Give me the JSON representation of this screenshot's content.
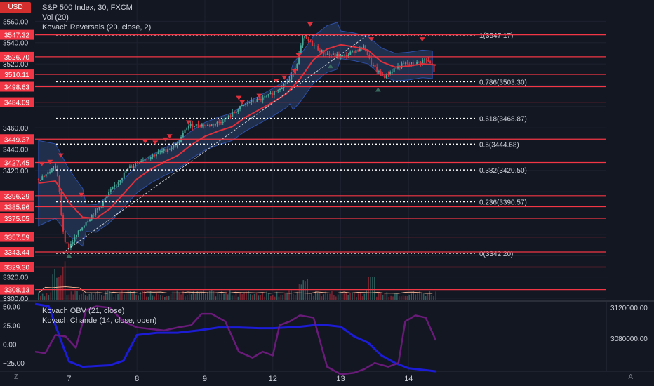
{
  "header": {
    "currency": "USD",
    "symbol_line": "S&P 500 Index, 30, FXCM",
    "vol_line": "Vol (20)",
    "kovach_line": "Kovach Reversals (20, close, 2)",
    "sub_line1": "Kovach OBV (21, close)",
    "sub_line2": "Kovach Chande (14, close, open)"
  },
  "corner": {
    "left": "Z",
    "right": "A"
  },
  "colors": {
    "background": "#131722",
    "level_line": "#f23645",
    "level_label_bg": "#f23645",
    "fib_line": "#ffffff",
    "ema": "#e0303c",
    "band_fill": "#2a4470",
    "obv": "#1c1cd6",
    "chande": "#6a1b7a",
    "candle_up": "#4aa89a",
    "candle_down": "#e0303c"
  },
  "chart_data": [
    {
      "type": "candlestick",
      "title": "S&P 500 Index, 30, FXCM",
      "ylim": [
        3298,
        3580
      ],
      "yticks": [
        3300,
        3320,
        3340,
        3360,
        3380,
        3400,
        3420,
        3440,
        3460,
        3480,
        3500,
        3520,
        3540,
        3560
      ],
      "xlim": [
        6.5,
        14.9
      ],
      "xticks": [
        "7",
        "8",
        "9",
        "12",
        "13",
        "14"
      ],
      "xtick_positions": [
        7,
        8,
        9,
        10,
        11,
        12
      ],
      "horizontal_levels": [
        3547.32,
        3526.7,
        3510.11,
        3498.63,
        3484.09,
        3449.37,
        3427.45,
        3396.29,
        3385.96,
        3375.05,
        3357.59,
        3343.44,
        3329.3,
        3308.13
      ],
      "fibonacci": [
        {
          "label": "1(3547.17)",
          "value": 3547.17
        },
        {
          "label": "0.786(3503.30)",
          "value": 3503.3
        },
        {
          "label": "0.618(3468.87)",
          "value": 3468.87
        },
        {
          "label": "0.5(3444.68)",
          "value": 3444.68
        },
        {
          "label": "0.382(3420.50)",
          "value": 3420.5
        },
        {
          "label": "0.236(3390.57)",
          "value": 3390.57
        },
        {
          "label": "0(3342.20)",
          "value": 3342.2
        }
      ],
      "price_path": [
        [
          6.55,
          3412
        ],
        [
          6.7,
          3418
        ],
        [
          6.8,
          3425
        ],
        [
          6.85,
          3405
        ],
        [
          6.9,
          3368
        ],
        [
          6.95,
          3352
        ],
        [
          7.0,
          3348
        ],
        [
          7.1,
          3358
        ],
        [
          7.25,
          3372
        ],
        [
          7.4,
          3382
        ],
        [
          7.55,
          3395
        ],
        [
          7.7,
          3408
        ],
        [
          7.85,
          3420
        ],
        [
          8.0,
          3428
        ],
        [
          8.15,
          3432
        ],
        [
          8.3,
          3436
        ],
        [
          8.45,
          3440
        ],
        [
          8.6,
          3445
        ],
        [
          8.75,
          3462
        ],
        [
          8.9,
          3463
        ],
        [
          9.05,
          3462
        ],
        [
          9.2,
          3465
        ],
        [
          9.35,
          3470
        ],
        [
          9.5,
          3478
        ],
        [
          9.65,
          3484
        ],
        [
          9.8,
          3486
        ],
        [
          9.95,
          3490
        ],
        [
          10.1,
          3498
        ],
        [
          10.25,
          3505
        ],
        [
          10.35,
          3520
        ],
        [
          10.45,
          3545
        ],
        [
          10.55,
          3540
        ],
        [
          10.65,
          3535
        ],
        [
          10.75,
          3530
        ],
        [
          10.9,
          3528
        ],
        [
          11.05,
          3527
        ],
        [
          11.2,
          3532
        ],
        [
          11.35,
          3536
        ],
        [
          11.45,
          3520
        ],
        [
          11.55,
          3512
        ],
        [
          11.65,
          3508
        ],
        [
          11.8,
          3516
        ],
        [
          11.95,
          3520
        ],
        [
          12.1,
          3520
        ],
        [
          12.25,
          3524
        ],
        [
          12.35,
          3518
        ],
        [
          12.4,
          3508
        ]
      ],
      "ema_path": [
        [
          6.55,
          3408
        ],
        [
          6.8,
          3410
        ],
        [
          7.0,
          3390
        ],
        [
          7.2,
          3376
        ],
        [
          7.4,
          3375
        ],
        [
          7.6,
          3384
        ],
        [
          7.8,
          3398
        ],
        [
          8.0,
          3412
        ],
        [
          8.2,
          3421
        ],
        [
          8.4,
          3428
        ],
        [
          8.6,
          3434
        ],
        [
          8.8,
          3444
        ],
        [
          9.0,
          3452
        ],
        [
          9.2,
          3457
        ],
        [
          9.4,
          3461
        ],
        [
          9.6,
          3470
        ],
        [
          9.8,
          3477
        ],
        [
          10.0,
          3484
        ],
        [
          10.2,
          3492
        ],
        [
          10.4,
          3506
        ],
        [
          10.6,
          3524
        ],
        [
          10.8,
          3534
        ],
        [
          11.0,
          3538
        ],
        [
          11.2,
          3536
        ],
        [
          11.4,
          3533
        ],
        [
          11.6,
          3522
        ],
        [
          11.8,
          3517
        ],
        [
          12.0,
          3518
        ],
        [
          12.2,
          3520
        ],
        [
          12.4,
          3519
        ]
      ],
      "trendline": [
        [
          6.9,
          3342.2
        ],
        [
          11.4,
          3547.17
        ]
      ],
      "reversal_down_markers": [
        [
          6.6,
          3426
        ],
        [
          6.72,
          3428
        ],
        [
          6.88,
          3434
        ],
        [
          7.18,
          3397
        ],
        [
          8.12,
          3447
        ],
        [
          8.27,
          3446
        ],
        [
          8.42,
          3449
        ],
        [
          8.48,
          3452
        ],
        [
          8.76,
          3465
        ],
        [
          9.5,
          3488
        ],
        [
          9.55,
          3484
        ],
        [
          9.8,
          3490
        ],
        [
          10.05,
          3504
        ],
        [
          10.17,
          3507
        ],
        [
          10.32,
          3513
        ],
        [
          10.38,
          3528
        ],
        [
          10.55,
          3557
        ],
        [
          11.45,
          3543
        ],
        [
          12.2,
          3543
        ]
      ],
      "reversal_up_markers": [
        [
          7.0,
          3340
        ],
        [
          10.85,
          3518
        ],
        [
          11.55,
          3496
        ]
      ]
    },
    {
      "type": "line",
      "ylim": [
        -35,
        55
      ],
      "yticks": [
        -25,
        0,
        25,
        50
      ],
      "ytick_labels": [
        "−25.00",
        "0.00",
        "25.00",
        "50.00"
      ],
      "right_ytick_labels": [
        "3120000.00",
        "3080000.00"
      ],
      "series": [
        {
          "name": "Kovach OBV (21, close)",
          "x": [
            6.5,
            6.7,
            6.9,
            7.0,
            7.2,
            7.4,
            7.6,
            7.8,
            8.0,
            8.3,
            8.6,
            8.9,
            9.2,
            9.5,
            9.8,
            10.0,
            10.2,
            10.4,
            10.6,
            10.8,
            11.0,
            11.2,
            11.4,
            11.6,
            11.8,
            12.0,
            12.2,
            12.4
          ],
          "values": [
            53,
            50,
            0,
            -23,
            -30,
            -29,
            -28,
            -22,
            12,
            15,
            15,
            18,
            22,
            22,
            21,
            21,
            22,
            23,
            25,
            25,
            23,
            10,
            2,
            -15,
            -25,
            -32,
            -34,
            -36
          ]
        },
        {
          "name": "Kovach Chande (14, close, open)",
          "x": [
            6.5,
            6.65,
            6.8,
            6.95,
            7.1,
            7.25,
            7.4,
            7.6,
            7.8,
            8.0,
            8.2,
            8.4,
            8.6,
            8.8,
            8.95,
            9.1,
            9.3,
            9.5,
            9.7,
            9.85,
            10.0,
            10.1,
            10.25,
            10.4,
            10.6,
            10.8,
            11.0,
            11.2,
            11.35,
            11.5,
            11.7,
            11.85,
            11.95,
            12.1,
            12.25,
            12.4
          ],
          "values": [
            -10,
            -12,
            12,
            10,
            -5,
            45,
            50,
            48,
            30,
            22,
            20,
            18,
            22,
            25,
            40,
            40,
            30,
            -10,
            -18,
            -10,
            -15,
            25,
            30,
            38,
            35,
            -30,
            -40,
            -38,
            -33,
            -25,
            -30,
            -25,
            30,
            38,
            35,
            5
          ]
        }
      ]
    }
  ]
}
